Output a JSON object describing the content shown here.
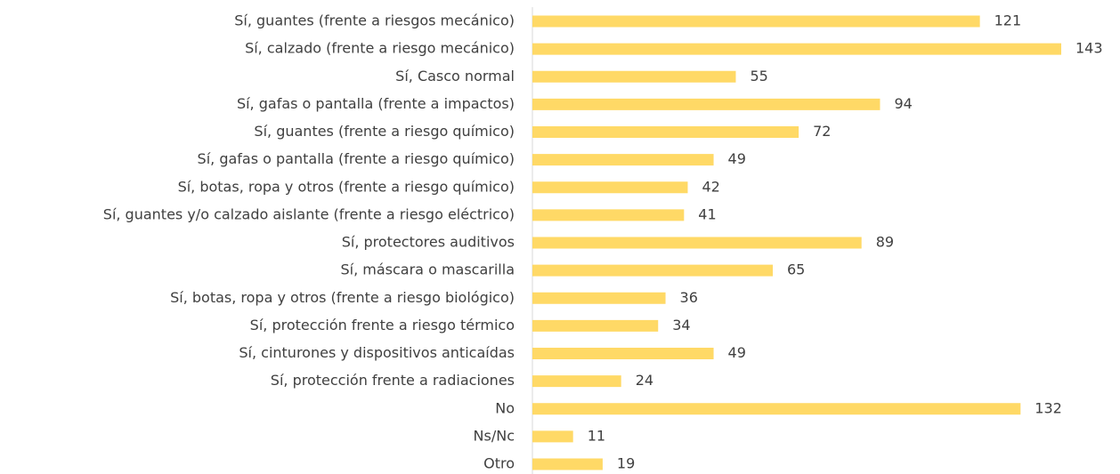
{
  "chart_data": {
    "type": "bar",
    "orientation": "horizontal",
    "categories": [
      "Sí, guantes (frente a riesgos mecánico)",
      "Sí, calzado (frente a riesgo mecánico)",
      "Sí, Casco normal",
      "Sí, gafas o pantalla (frente a impactos)",
      "Sí, guantes (frente a riesgo químico)",
      "Sí, gafas o pantalla (frente a riesgo químico)",
      "Sí, botas, ropa y otros (frente a riesgo químico)",
      "Sí, guantes y/o calzado aislante (frente a riesgo eléctrico)",
      "Sí, protectores auditivos",
      "Sí, máscara o mascarilla",
      "Sí, botas, ropa y otros (frente a riesgo biológico)",
      "Sí, protección frente a riesgo térmico",
      "Sí, cinturones y dispositivos anticaídas",
      "Sí, protección frente a radiaciones",
      "No",
      "Ns/Nc",
      "Otro"
    ],
    "values": [
      121,
      143,
      55,
      94,
      72,
      49,
      42,
      41,
      89,
      65,
      36,
      34,
      49,
      24,
      132,
      11,
      19
    ],
    "color": "#FFD966"
  }
}
